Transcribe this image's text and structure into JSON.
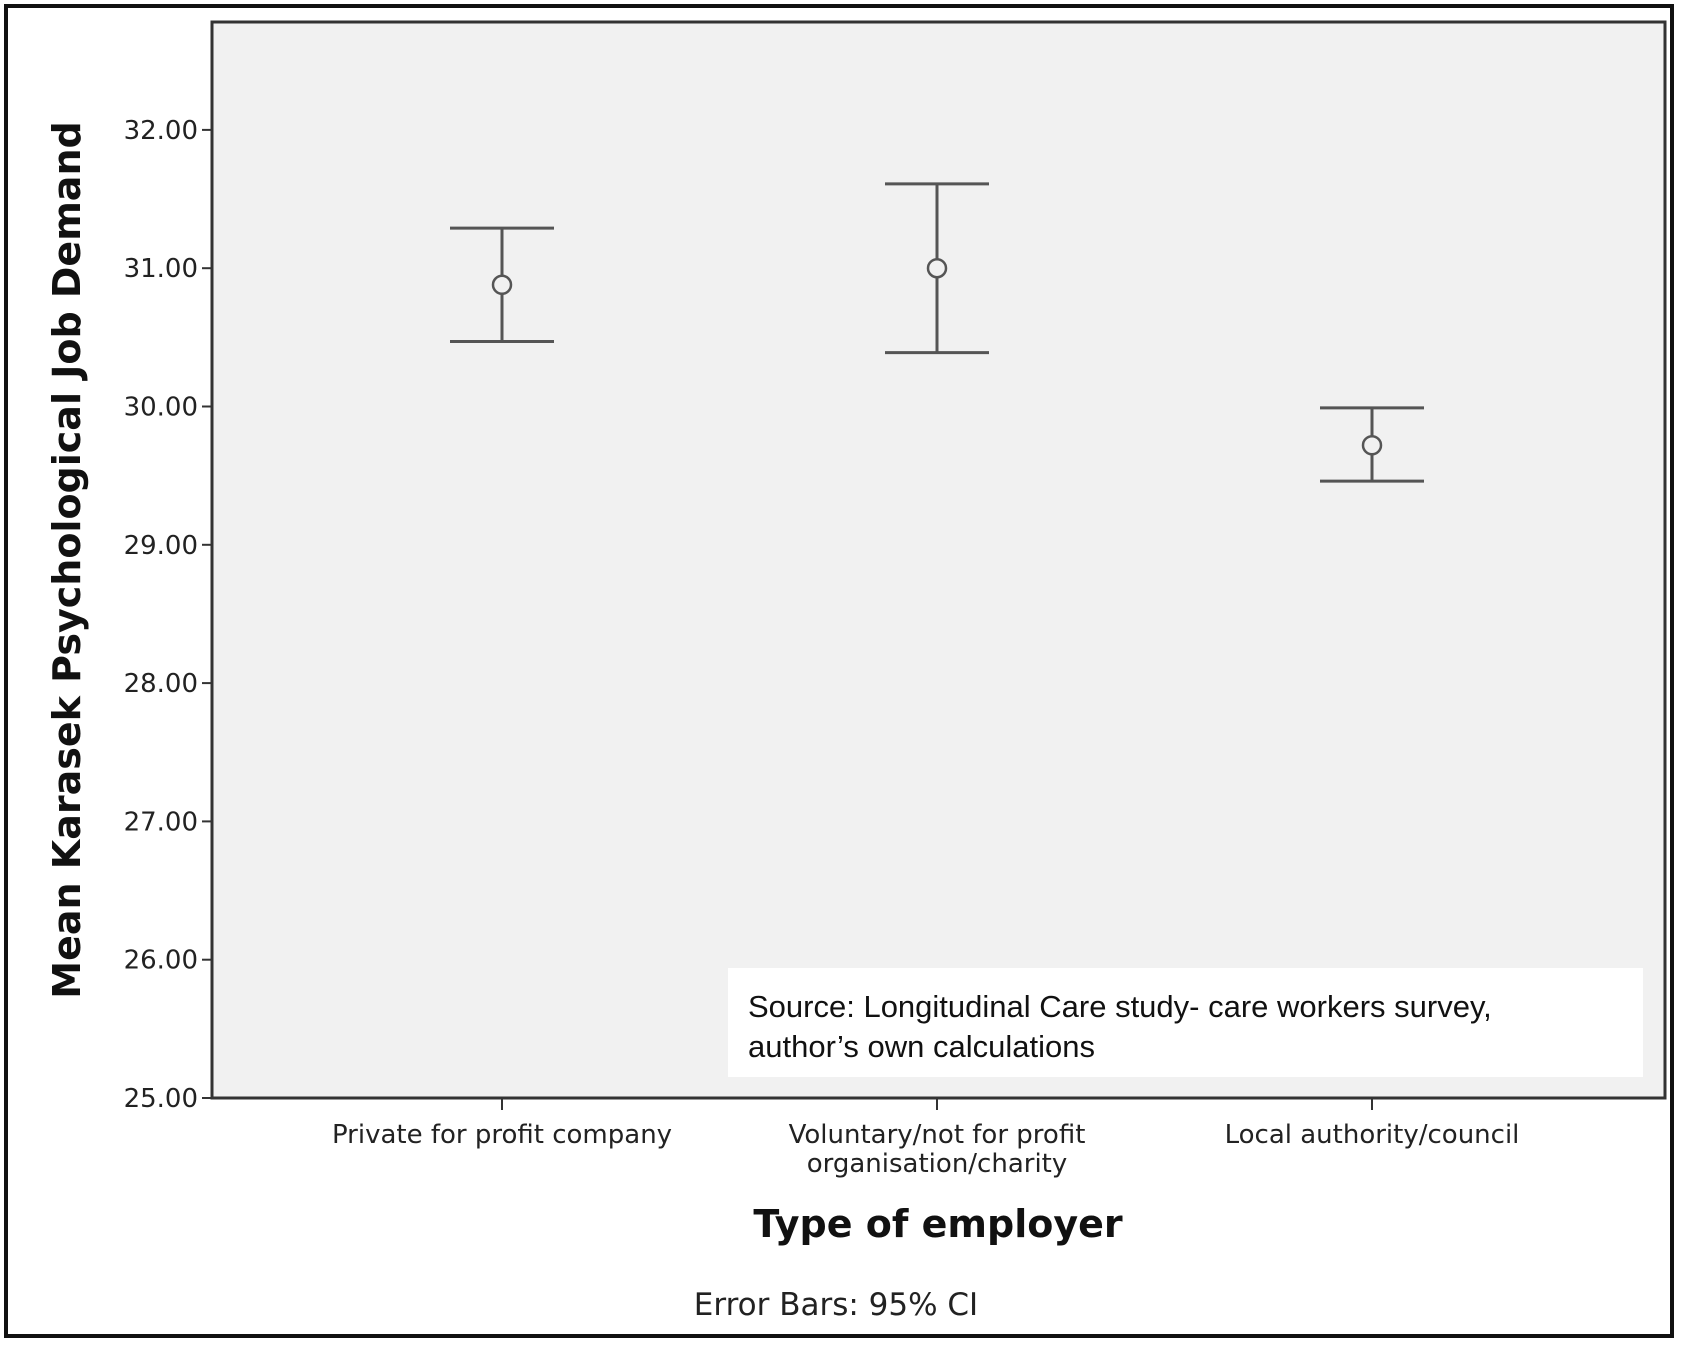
{
  "chart_data": {
    "type": "errorbar",
    "xlabel": "Type of employer",
    "ylabel": "Mean Karasek Psychological Job Demand",
    "ylim": [
      25,
      32.8
    ],
    "yticks": [
      "25.00",
      "26.00",
      "27.00",
      "28.00",
      "29.00",
      "30.00",
      "31.00",
      "32.00"
    ],
    "categories": [
      [
        "Private for profit company"
      ],
      [
        "Voluntary/not for profit",
        "organisation/charity"
      ],
      [
        "Local authority/council"
      ]
    ],
    "means": [
      30.88,
      31.0,
      29.72
    ],
    "ci_lower": [
      30.47,
      30.39,
      29.46
    ],
    "ci_upper": [
      31.29,
      31.61,
      29.99
    ],
    "grid": false,
    "plot_background": "#f1f1f1",
    "mark_color": "#555555",
    "footnote": "Error Bars: 95% CI",
    "annotation": {
      "lines": [
        "Source: Longitudinal Care study- care workers survey,",
        "author’s own calculations"
      ]
    }
  }
}
